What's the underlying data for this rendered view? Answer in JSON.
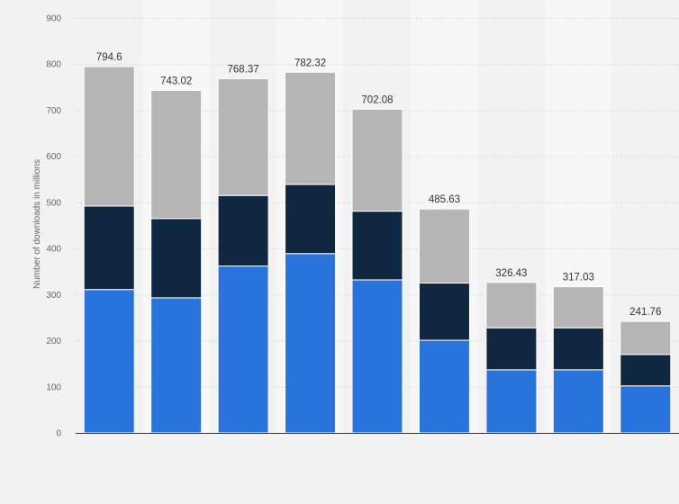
{
  "chart_data": {
    "type": "bar",
    "stacked": true,
    "ylabel": "Number of downloads in millions",
    "ylim": [
      0,
      900
    ],
    "yticks": [
      "0",
      "100",
      "200",
      "300",
      "400",
      "500",
      "600",
      "700",
      "800",
      "900"
    ],
    "categories": [
      "",
      "",
      "",
      "",
      "",
      "",
      "",
      "",
      ""
    ],
    "totals": [
      "794.6",
      "743.02",
      "768.37",
      "782.32",
      "702.08",
      "485.63",
      "326.43",
      "317.03",
      "241.76"
    ],
    "series": [
      {
        "color": "#2874dc",
        "values": [
          311,
          293,
          362,
          389,
          332,
          201,
          137,
          137,
          102
        ]
      },
      {
        "color": "#0f2740",
        "values": [
          181,
          172,
          153,
          150,
          149,
          124,
          91,
          91,
          68
        ]
      },
      {
        "color": "#b5b5b5",
        "values": [
          302.6,
          278.02,
          253.37,
          243.32,
          221.08,
          160.63,
          98.43,
          89.03,
          71.76
        ]
      }
    ],
    "grid": true,
    "legend": "none"
  }
}
